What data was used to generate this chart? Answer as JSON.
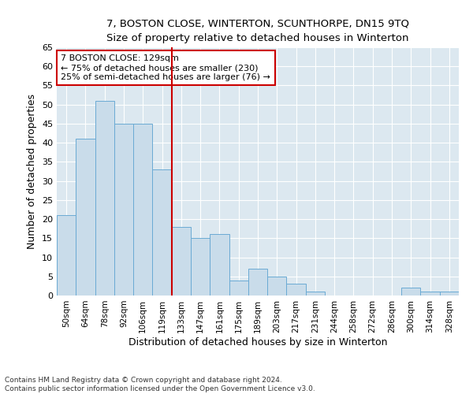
{
  "title": "7, BOSTON CLOSE, WINTERTON, SCUNTHORPE, DN15 9TQ",
  "subtitle": "Size of property relative to detached houses in Winterton",
  "xlabel": "Distribution of detached houses by size in Winterton",
  "ylabel": "Number of detached properties",
  "categories": [
    "50sqm",
    "64sqm",
    "78sqm",
    "92sqm",
    "106sqm",
    "119sqm",
    "133sqm",
    "147sqm",
    "161sqm",
    "175sqm",
    "189sqm",
    "203sqm",
    "217sqm",
    "231sqm",
    "244sqm",
    "258sqm",
    "272sqm",
    "286sqm",
    "300sqm",
    "314sqm",
    "328sqm"
  ],
  "values": [
    21,
    41,
    51,
    45,
    45,
    33,
    18,
    15,
    16,
    4,
    7,
    5,
    3,
    1,
    0,
    0,
    0,
    0,
    2,
    1,
    1
  ],
  "bar_color": "#c9dcea",
  "bar_edge_color": "#6aaad4",
  "ref_line_x": 5.5,
  "ref_line_label": "7 BOSTON CLOSE: 129sqm",
  "annotation_line1": "← 75% of detached houses are smaller (230)",
  "annotation_line2": "25% of semi-detached houses are larger (76) →",
  "ref_line_color": "#cc0000",
  "annotation_box_edge": "#cc0000",
  "ylim": [
    0,
    65
  ],
  "yticks": [
    0,
    5,
    10,
    15,
    20,
    25,
    30,
    35,
    40,
    45,
    50,
    55,
    60,
    65
  ],
  "footer_line1": "Contains HM Land Registry data © Crown copyright and database right 2024.",
  "footer_line2": "Contains public sector information licensed under the Open Government Licence v3.0.",
  "bg_color": "#ffffff",
  "plot_bg_color": "#dce8f0"
}
